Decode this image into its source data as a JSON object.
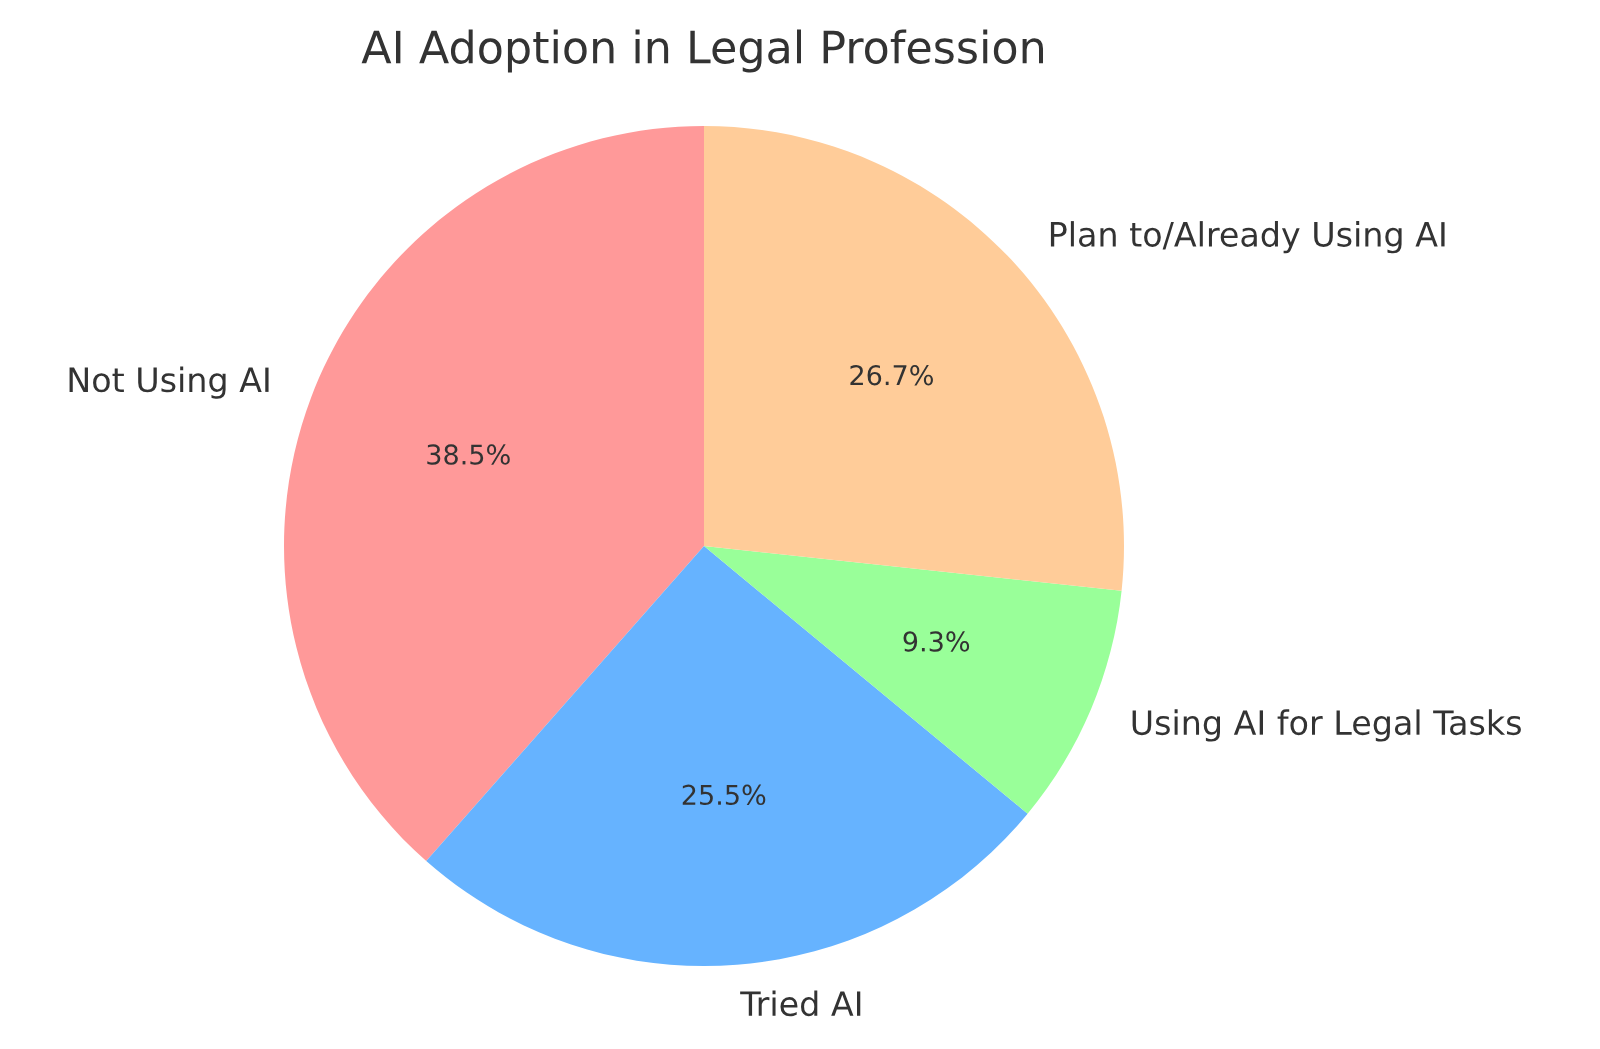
{
  "chart_data": {
    "type": "pie",
    "title": "AI Adoption in Legal Profession",
    "categories": [
      "Not Using AI",
      "Tried AI",
      "Using AI for Legal Tasks",
      "Plan to/Already Using AI"
    ],
    "values": [
      38.5,
      25.5,
      9.3,
      26.7
    ],
    "value_labels": [
      "38.5%",
      "25.5%",
      "9.3%",
      "26.7%"
    ],
    "colors": [
      "#ff9999",
      "#66b3ff",
      "#99ff99",
      "#ffcc99"
    ]
  }
}
